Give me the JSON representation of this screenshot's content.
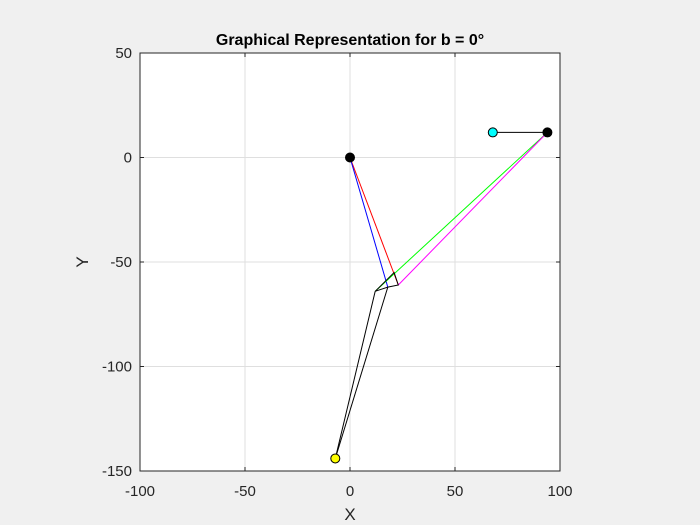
{
  "chart_data": {
    "type": "line",
    "title": "Graphical Representation for b = 0°",
    "xlabel": "X",
    "ylabel": "Y",
    "xlim": [
      -100,
      100
    ],
    "ylim": [
      -150,
      50
    ],
    "xticks": [
      "-100",
      "-50",
      "0",
      "50",
      "100"
    ],
    "yticks": [
      "50",
      "0",
      "-50",
      "-100",
      "-150"
    ],
    "grid": true,
    "colors": {
      "red": "#ff0000",
      "blue": "#0000ff",
      "green": "#00ff00",
      "magenta": "#ff00ff",
      "black": "#000000",
      "cyan": "#00ffff",
      "yellow": "#ffff00"
    },
    "segments": [
      {
        "color": "red",
        "x": [
          0,
          23
        ],
        "y": [
          0,
          -61
        ]
      },
      {
        "color": "blue",
        "x": [
          0,
          18
        ],
        "y": [
          0,
          -62
        ]
      },
      {
        "color": "green",
        "x": [
          12,
          94
        ],
        "y": [
          -64,
          12
        ]
      },
      {
        "color": "magenta",
        "x": [
          23,
          94
        ],
        "y": [
          -61,
          12
        ]
      },
      {
        "color": "black",
        "x": [
          12,
          18,
          23,
          21,
          12
        ],
        "y": [
          -64,
          -62,
          -61,
          -55,
          -64
        ]
      },
      {
        "color": "black",
        "x": [
          12,
          -7
        ],
        "y": [
          -64,
          -144
        ]
      },
      {
        "color": "black",
        "x": [
          18,
          -7
        ],
        "y": [
          -62,
          -144
        ]
      },
      {
        "color": "black",
        "x": [
          68,
          94
        ],
        "y": [
          12,
          12
        ]
      }
    ],
    "points": [
      {
        "x": 0,
        "y": 0,
        "color": "black"
      },
      {
        "x": 94,
        "y": 12,
        "color": "black"
      },
      {
        "x": 68,
        "y": 12,
        "color": "cyan"
      },
      {
        "x": -7,
        "y": -144,
        "color": "yellow"
      }
    ]
  }
}
